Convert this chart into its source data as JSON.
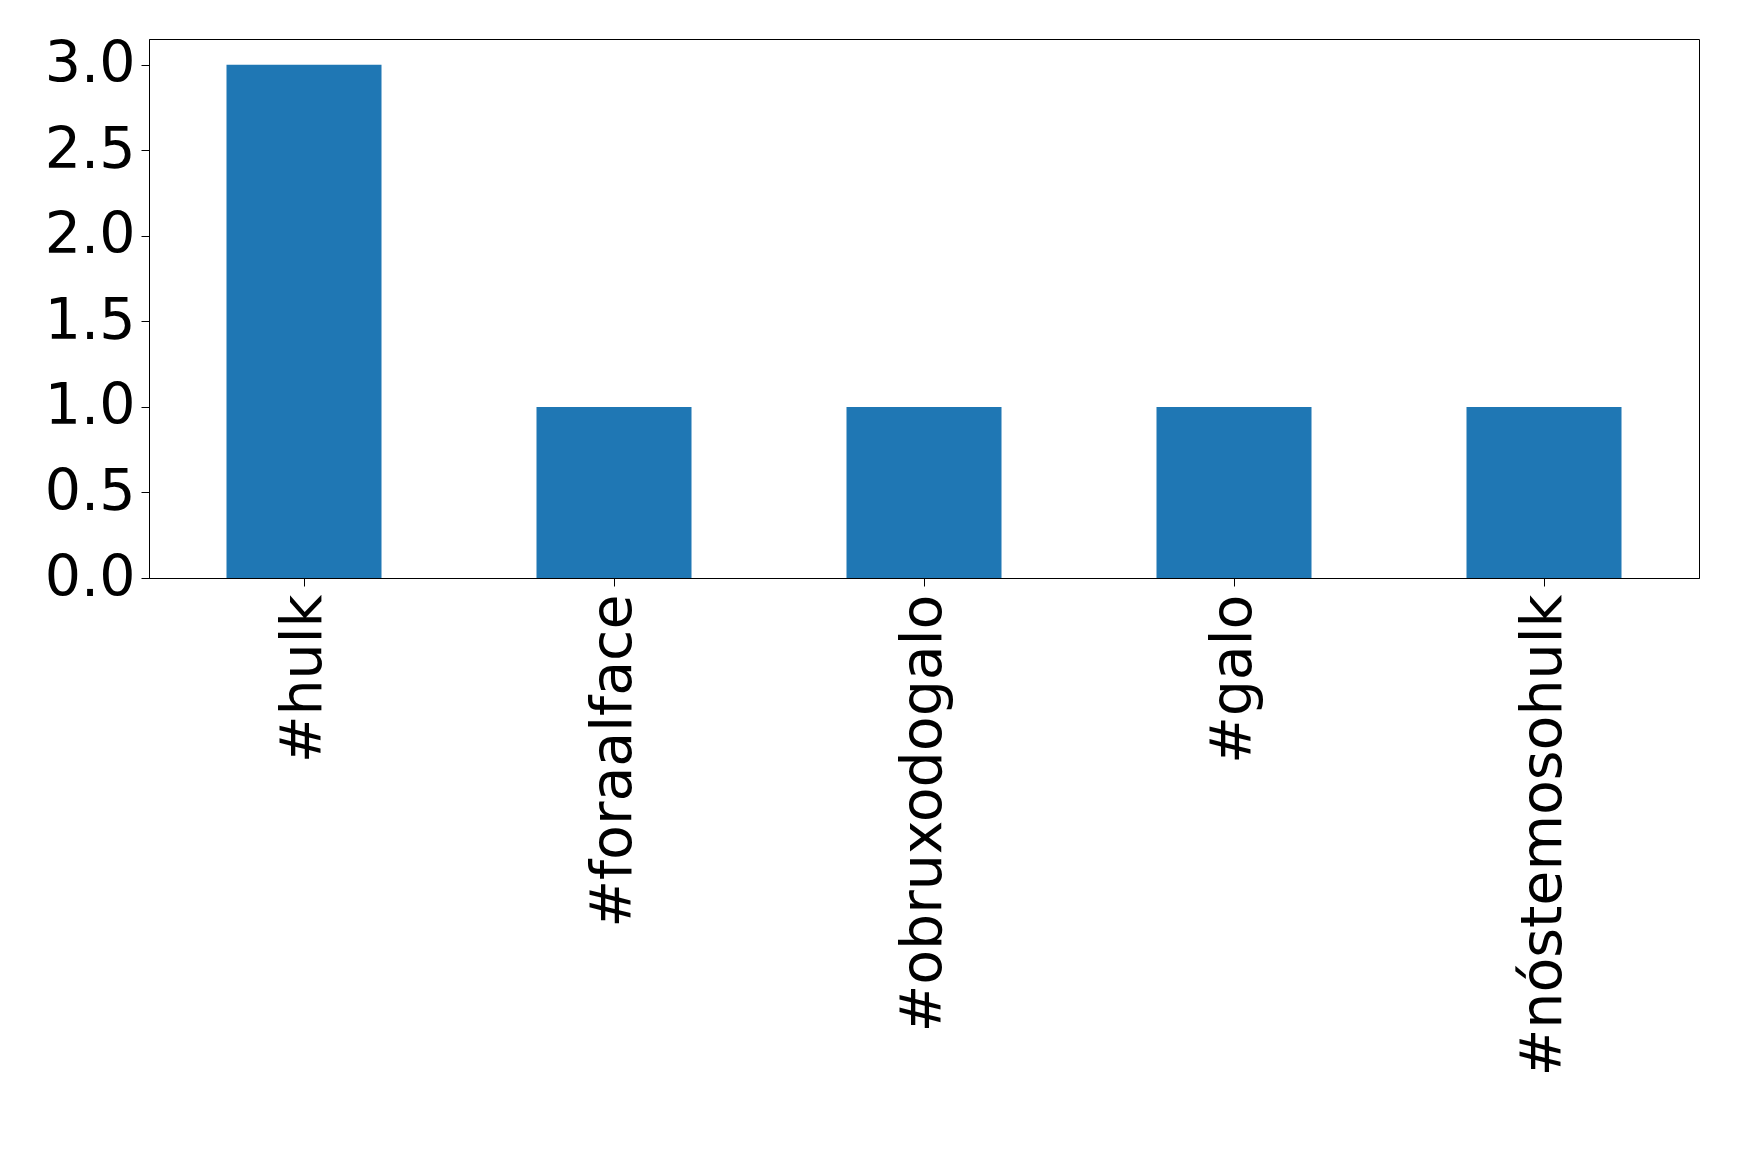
{
  "chart_data": {
    "type": "bar",
    "categories": [
      "#hulk",
      "#foraalface",
      "#obruxodogalo",
      "#galo",
      "#nóstemosohulk"
    ],
    "values": [
      3,
      1,
      1,
      1,
      1
    ],
    "color": "#1f77b4",
    "ylim": [
      0,
      3.15
    ],
    "yticks": [
      {
        "value": 0,
        "label": "0.0"
      },
      0.5,
      {
        "value": 1,
        "label": "1.0"
      },
      1.5,
      {
        "value": 2,
        "label": "2.0"
      },
      2.5,
      {
        "value": 3,
        "label": "3.0"
      }
    ],
    "grid": false
  }
}
